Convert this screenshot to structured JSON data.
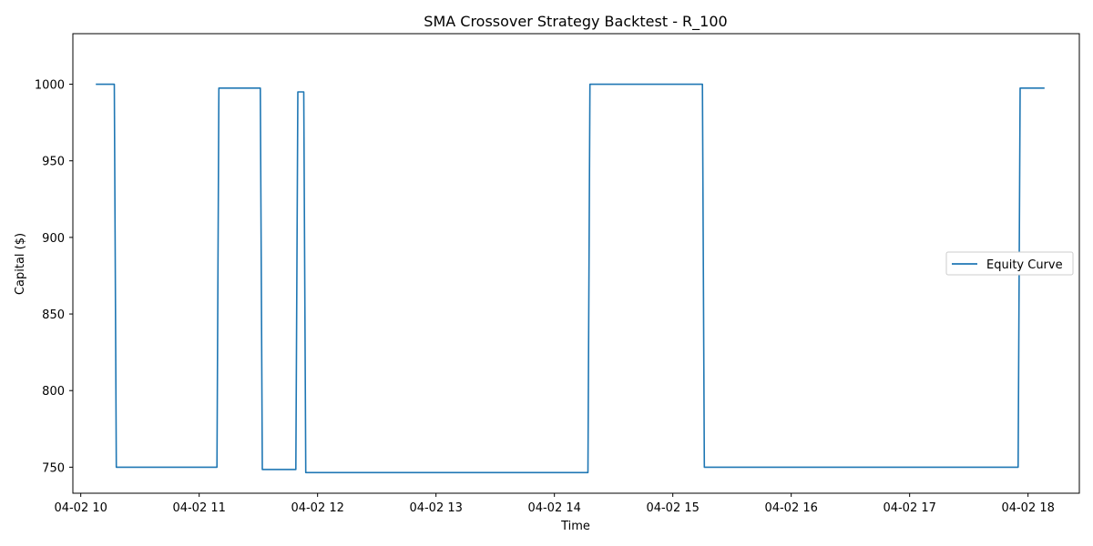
{
  "chart_data": {
    "type": "line",
    "title": "SMA Crossover Strategy Backtest - R_100",
    "xlabel": "Time",
    "ylabel": "Capital ($)",
    "grid": false,
    "legend_position": "center-right",
    "x_range": [
      "2024-04-02 09:56",
      "2024-04-02 18:26"
    ],
    "ylim": [
      733,
      1033
    ],
    "x_ticks": [
      {
        "value": "2024-04-02 10:00",
        "label": "04-02 10"
      },
      {
        "value": "2024-04-02 11:00",
        "label": "04-02 11"
      },
      {
        "value": "2024-04-02 12:00",
        "label": "04-02 12"
      },
      {
        "value": "2024-04-02 13:00",
        "label": "04-02 13"
      },
      {
        "value": "2024-04-02 14:00",
        "label": "04-02 14"
      },
      {
        "value": "2024-04-02 15:00",
        "label": "04-02 15"
      },
      {
        "value": "2024-04-02 16:00",
        "label": "04-02 16"
      },
      {
        "value": "2024-04-02 17:00",
        "label": "04-02 17"
      },
      {
        "value": "2024-04-02 18:00",
        "label": "04-02 18"
      }
    ],
    "y_ticks": [
      750,
      800,
      850,
      900,
      950,
      1000
    ],
    "series": [
      {
        "name": "Equity Curve",
        "color": "#1f77b4",
        "points": [
          {
            "x": "2024-04-02 10:08",
            "y": 1000
          },
          {
            "x": "2024-04-02 10:17",
            "y": 1000
          },
          {
            "x": "2024-04-02 10:18",
            "y": 750
          },
          {
            "x": "2024-04-02 11:09",
            "y": 750
          },
          {
            "x": "2024-04-02 11:10",
            "y": 997.5
          },
          {
            "x": "2024-04-02 11:31",
            "y": 997.5
          },
          {
            "x": "2024-04-02 11:32",
            "y": 748.5
          },
          {
            "x": "2024-04-02 11:49",
            "y": 748.5
          },
          {
            "x": "2024-04-02 11:50",
            "y": 995
          },
          {
            "x": "2024-04-02 11:53",
            "y": 995
          },
          {
            "x": "2024-04-02 11:54",
            "y": 746.5
          },
          {
            "x": "2024-04-02 14:17",
            "y": 746.5
          },
          {
            "x": "2024-04-02 14:18",
            "y": 1000
          },
          {
            "x": "2024-04-02 15:15",
            "y": 1000
          },
          {
            "x": "2024-04-02 15:16",
            "y": 750
          },
          {
            "x": "2024-04-02 17:55",
            "y": 750
          },
          {
            "x": "2024-04-02 17:56",
            "y": 997.5
          },
          {
            "x": "2024-04-02 18:08",
            "y": 997.5
          }
        ]
      }
    ]
  }
}
